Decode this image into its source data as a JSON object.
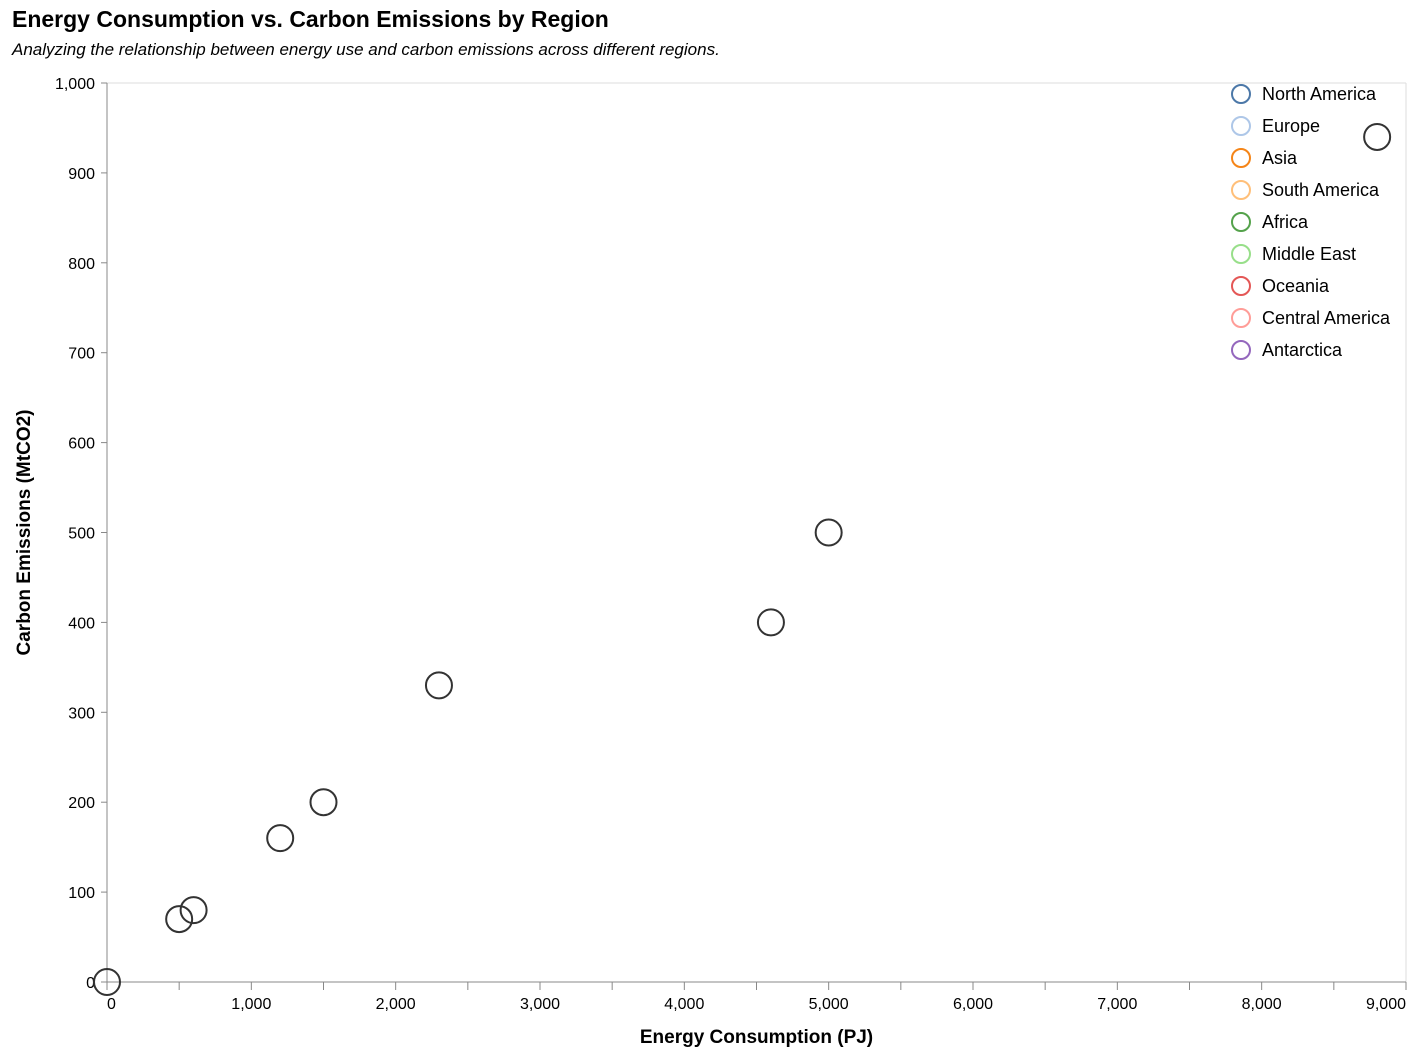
{
  "chart_data": {
    "type": "scatter",
    "title": "Energy Consumption vs. Carbon Emissions by Region",
    "subtitle": "Analyzing the relationship between energy use and carbon emissions across different regions.",
    "xlabel": "Energy Consumption (PJ)",
    "ylabel": "Carbon Emissions (MtCO2)",
    "xlim": [
      0,
      9000
    ],
    "ylim": [
      0,
      1000
    ],
    "x_ticks": [
      0,
      1000,
      2000,
      3000,
      4000,
      5000,
      6000,
      7000,
      8000,
      9000
    ],
    "x_tick_labels": [
      "0",
      "1,000",
      "2,000",
      "3,000",
      "4,000",
      "5,000",
      "6,000",
      "7,000",
      "8,000",
      "9,000"
    ],
    "y_ticks": [
      0,
      100,
      200,
      300,
      400,
      500,
      600,
      700,
      800,
      900,
      1000
    ],
    "y_tick_labels": [
      "0",
      "100",
      "200",
      "300",
      "400",
      "500",
      "600",
      "700",
      "800",
      "900",
      "1,000"
    ],
    "grid": false,
    "legend_position": "top-right",
    "legend": [
      {
        "name": "North America",
        "color": "#4c78a8"
      },
      {
        "name": "Europe",
        "color": "#aec7e8"
      },
      {
        "name": "Asia",
        "color": "#f58518"
      },
      {
        "name": "South America",
        "color": "#ffbf79"
      },
      {
        "name": "Africa",
        "color": "#54a24b"
      },
      {
        "name": "Middle East",
        "color": "#98df8a"
      },
      {
        "name": "Oceania",
        "color": "#e45756"
      },
      {
        "name": "Central America",
        "color": "#ff9d98"
      },
      {
        "name": "Antarctica",
        "color": "#9467bd"
      }
    ],
    "points": [
      {
        "x": 8800,
        "y": 940
      },
      {
        "x": 5000,
        "y": 500
      },
      {
        "x": 4600,
        "y": 400
      },
      {
        "x": 2300,
        "y": 330
      },
      {
        "x": 1500,
        "y": 200
      },
      {
        "x": 1200,
        "y": 160
      },
      {
        "x": 600,
        "y": 80
      },
      {
        "x": 500,
        "y": 70
      },
      {
        "x": 0,
        "y": 0
      }
    ],
    "point_stroke_color": "#333333",
    "axis_color": "#888888",
    "frame_color": "#dddddd"
  }
}
